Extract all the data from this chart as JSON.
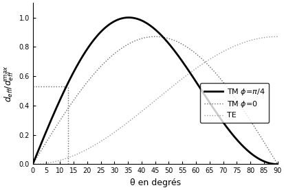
{
  "title": "",
  "xlabel": "θ en degrés",
  "ylabel": "$d_{eff}/d_{eff}^{max}$",
  "xlim": [
    0,
    90
  ],
  "ylim": [
    0,
    1.1
  ],
  "yticks": [
    0.0,
    0.2,
    0.4,
    0.6,
    0.8,
    1.0
  ],
  "xticks": [
    0,
    5,
    10,
    15,
    20,
    25,
    30,
    35,
    40,
    45,
    50,
    55,
    60,
    65,
    70,
    75,
    80,
    85,
    90
  ],
  "legend_labels": [
    "TM $\\phi$=$\\pi$/4",
    "TM $\\phi$=0",
    "TE"
  ],
  "line_colors": [
    "#000000",
    "#666666",
    "#999999"
  ],
  "tm0_dotsize": [
    2,
    2
  ],
  "te_dotsize": [
    2,
    3
  ],
  "vertical_line_x": 13.0,
  "vertical_line_y": 0.53,
  "background_color": "#ffffff",
  "figsize": [
    4.14,
    2.77
  ],
  "dpi": 100
}
